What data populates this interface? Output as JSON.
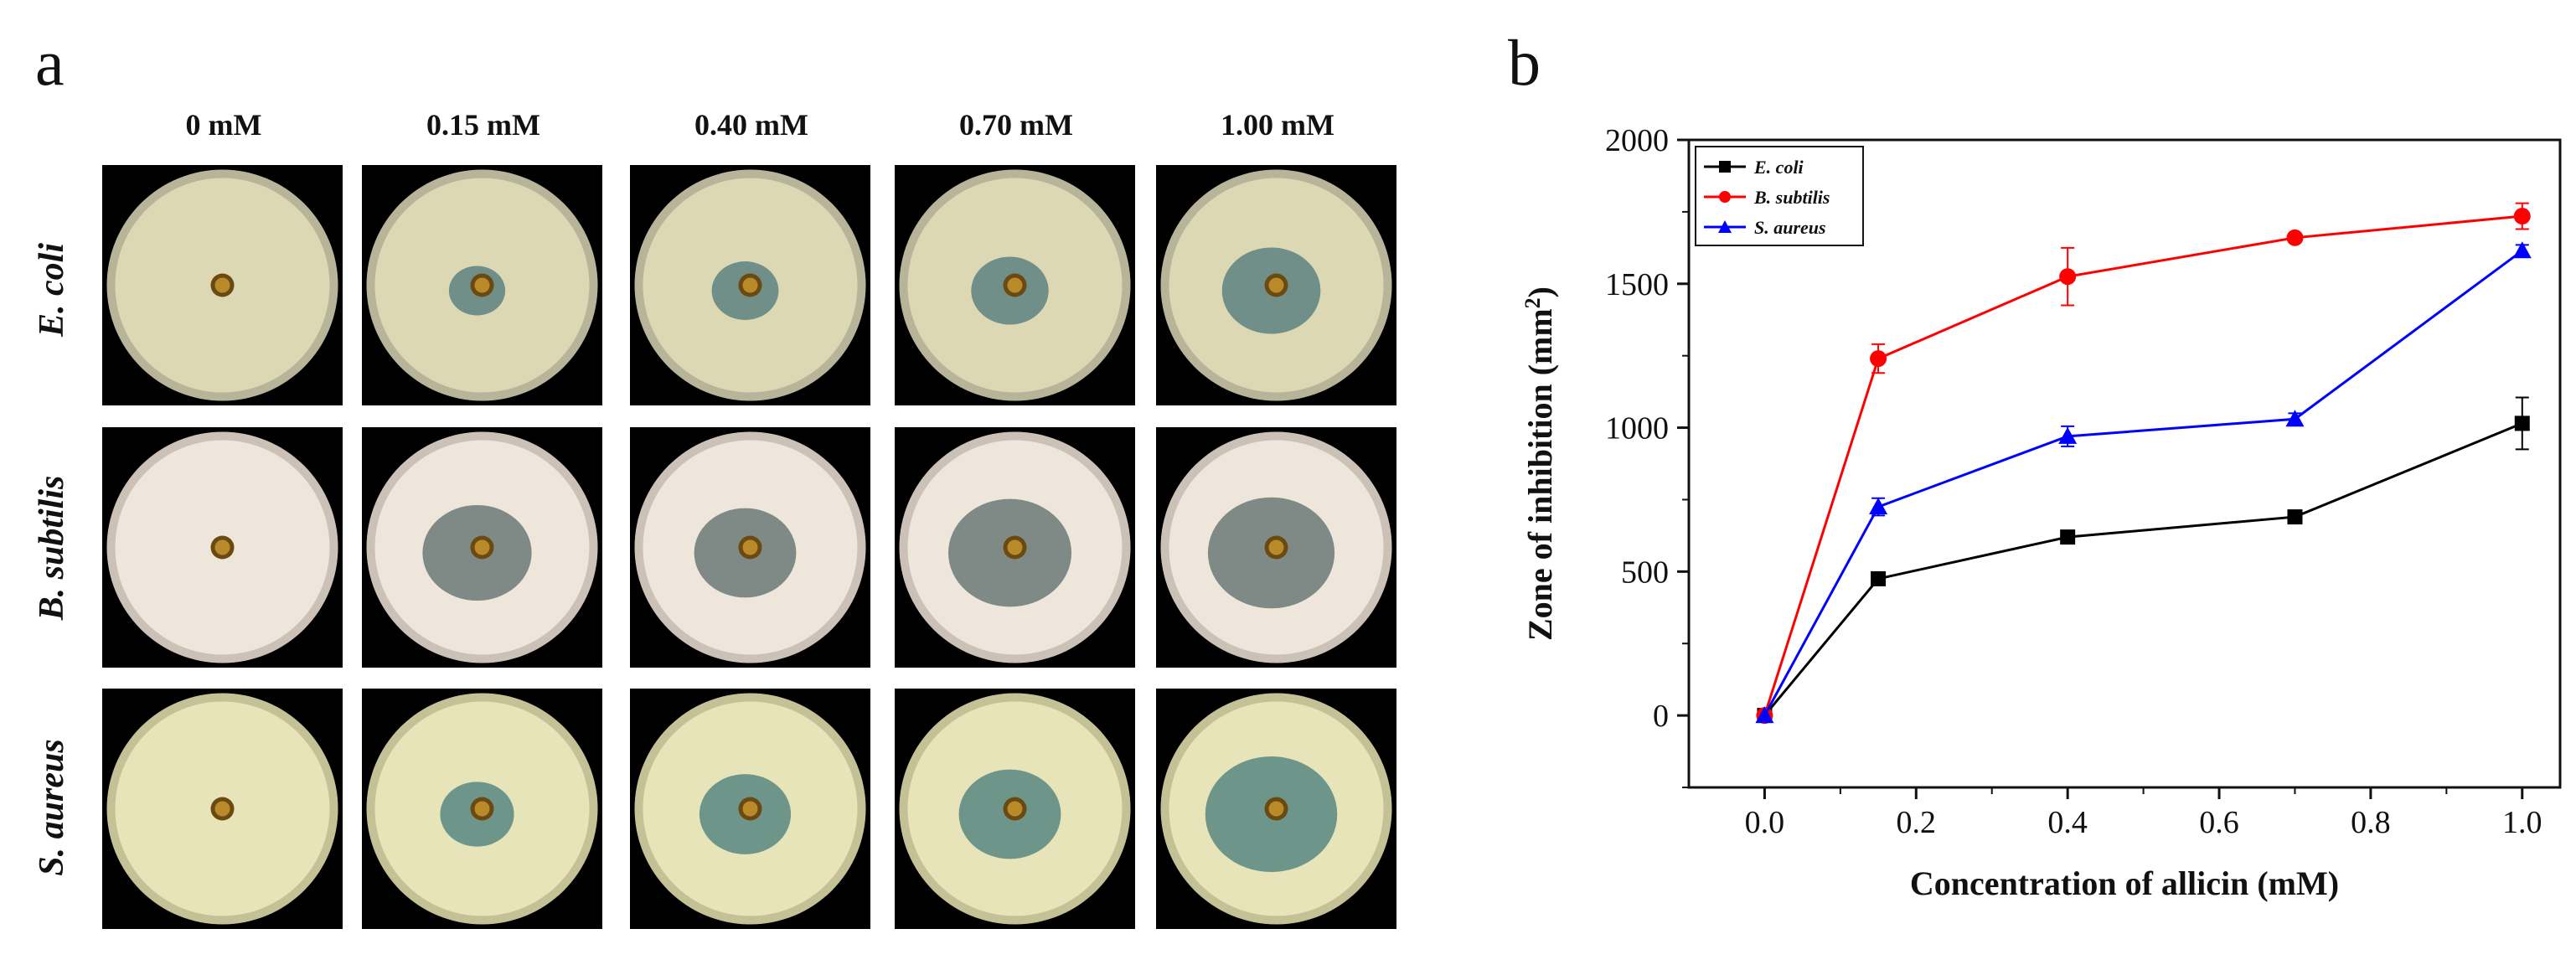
{
  "panel_a": {
    "letter": "a",
    "columns": [
      "0 mM",
      "0.15 mM",
      "0.40 mM",
      "0.70 mM",
      "1.00 mM"
    ],
    "rows": [
      "E. coli",
      "B. subtilis",
      "S. aureus"
    ]
  },
  "colors": {
    "e_coli": "#000000",
    "b_subtilis": "#ff0000",
    "s_aureus": "#0000ff"
  },
  "chart_data": {
    "panel_letter": "b",
    "type": "line",
    "xlabel": "Concentration of allicin (mM)",
    "ylabel": "Zone of inhibition (mm",
    "ylabel_sup": "2",
    "ylabel_end": ")",
    "x": [
      0.0,
      0.15,
      0.4,
      0.7,
      1.0
    ],
    "xlim": [
      -0.1,
      1.05
    ],
    "ylim": [
      -250,
      2000
    ],
    "x_ticks": [
      "0.0",
      "0.2",
      "0.4",
      "0.6",
      "0.8",
      "1.0"
    ],
    "y_ticks": [
      "0",
      "500",
      "1000",
      "1500",
      "2000"
    ],
    "legend_position": "top-left",
    "series": [
      {
        "name": "E. coli",
        "color": "#000000",
        "marker": "square",
        "values": [
          0,
          475,
          620,
          690,
          1015
        ],
        "errors": [
          0,
          15,
          15,
          15,
          90
        ]
      },
      {
        "name": "B. subtilis",
        "color": "#ff0000",
        "marker": "circle",
        "values": [
          0,
          1240,
          1525,
          1660,
          1735
        ],
        "errors": [
          0,
          50,
          100,
          15,
          45
        ]
      },
      {
        "name": "S. aureus",
        "color": "#0000ff",
        "marker": "triangle",
        "values": [
          0,
          725,
          970,
          1030,
          1615
        ],
        "errors": [
          0,
          30,
          35,
          20,
          20
        ]
      }
    ]
  }
}
